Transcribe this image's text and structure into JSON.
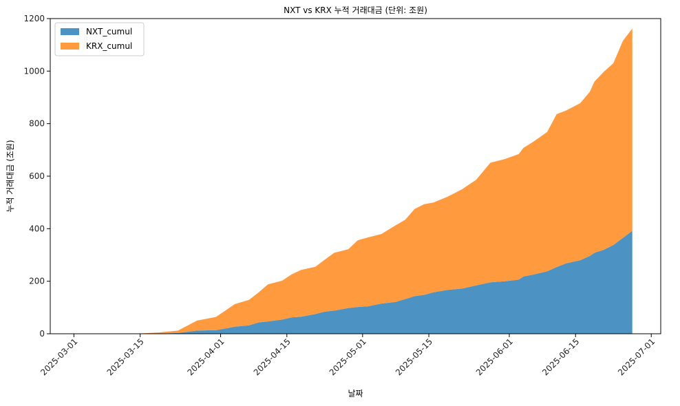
{
  "chart_data": {
    "type": "area",
    "stacked": true,
    "title": "NXT vs KRX 누적 거래대금 (단위: 조원)",
    "xlabel": "날짜",
    "ylabel": "누적 거래대금 (조원)",
    "ylim": [
      0,
      1200
    ],
    "yticks": [
      0,
      200,
      400,
      600,
      800,
      1000,
      1200
    ],
    "xlim": [
      "2025-02-24",
      "2025-07-03"
    ],
    "xticks": [
      "2025-03-01",
      "2025-03-15",
      "2025-04-01",
      "2025-04-15",
      "2025-05-01",
      "2025-05-15",
      "2025-06-01",
      "2025-06-15",
      "2025-07-01"
    ],
    "legend_position": "top-left",
    "x": [
      "2025-03-14",
      "2025-03-19",
      "2025-03-23",
      "2025-03-27",
      "2025-03-31",
      "2025-04-02",
      "2025-04-04",
      "2025-04-07",
      "2025-04-09",
      "2025-04-11",
      "2025-04-14",
      "2025-04-16",
      "2025-04-18",
      "2025-04-21",
      "2025-04-23",
      "2025-04-25",
      "2025-04-28",
      "2025-04-30",
      "2025-05-02",
      "2025-05-05",
      "2025-05-08",
      "2025-05-10",
      "2025-05-12",
      "2025-05-14",
      "2025-05-16",
      "2025-05-19",
      "2025-05-22",
      "2025-05-25",
      "2025-05-28",
      "2025-05-31",
      "2025-06-03",
      "2025-06-04",
      "2025-06-06",
      "2025-06-09",
      "2025-06-11",
      "2025-06-13",
      "2025-06-16",
      "2025-06-18",
      "2025-06-19",
      "2025-06-21",
      "2025-06-23",
      "2025-06-25",
      "2025-06-27"
    ],
    "series": [
      {
        "name": "NXT_cumul",
        "color": "#4c93c4",
        "values": [
          0,
          1,
          3,
          12,
          14,
          20,
          27,
          32,
          43,
          47,
          54,
          62,
          65,
          75,
          84,
          88,
          98,
          102,
          104,
          115,
          121,
          132,
          143,
          148,
          158,
          167,
          172,
          184,
          196,
          200,
          206,
          218,
          225,
          238,
          254,
          268,
          280,
          296,
          308,
          320,
          338,
          365,
          392
        ]
      },
      {
        "name": "KRX_cumul",
        "color": "#ff9a3e",
        "values": [
          0,
          4,
          9,
          38,
          50,
          68,
          86,
          97,
          114,
          141,
          148,
          164,
          178,
          180,
          198,
          220,
          224,
          254,
          262,
          265,
          292,
          302,
          332,
          345,
          342,
          355,
          378,
          402,
          455,
          465,
          478,
          490,
          505,
          530,
          582,
          582,
          598,
          625,
          652,
          678,
          692,
          750,
          770
        ]
      }
    ]
  }
}
